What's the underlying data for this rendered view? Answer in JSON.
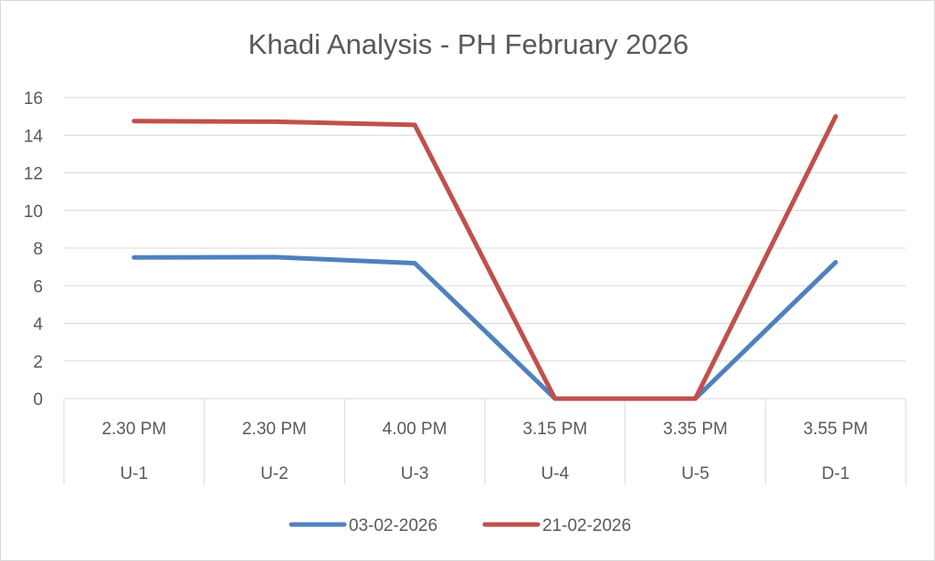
{
  "chart_data": {
    "type": "line",
    "title": "Khadi Analysis - PH February 2026",
    "categories": [
      {
        "time": "2.30 PM",
        "unit": "U-1"
      },
      {
        "time": "2.30 PM",
        "unit": "U-2"
      },
      {
        "time": "4.00 PM",
        "unit": "U-3"
      },
      {
        "time": "3.15 PM",
        "unit": "U-4"
      },
      {
        "time": "3.35 PM",
        "unit": "U-5"
      },
      {
        "time": "3.55 PM",
        "unit": "D-1"
      }
    ],
    "series": [
      {
        "name": "03-02-2026",
        "color": "#4f81bd",
        "values": [
          7.5,
          7.52,
          7.2,
          0,
          0,
          7.25
        ]
      },
      {
        "name": "21-02-2026",
        "color": "#c0504d",
        "values": [
          14.75,
          14.72,
          14.55,
          0,
          0,
          15.0
        ]
      }
    ],
    "y_ticks": [
      "0",
      "2",
      "4",
      "6",
      "8",
      "10",
      "12",
      "14",
      "16"
    ],
    "ylim": [
      0,
      16
    ],
    "grid": true,
    "legend_position": "bottom"
  }
}
